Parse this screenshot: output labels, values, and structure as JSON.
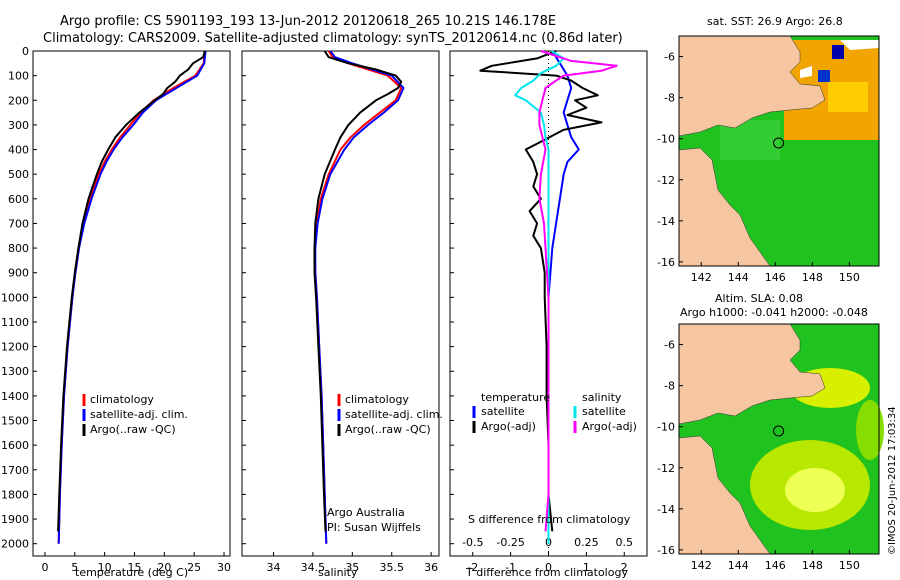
{
  "header": {
    "line1": "Argo profile: CS 5901193_193 13-Jun-2012 20120618_265 10.21S 146.178E",
    "line2": "Climatology: CARS2009. Satellite-adjusted climatology: synTS_20120614.nc (0.86d later)"
  },
  "credit": {
    "org": "Argo Australia",
    "pi": "PI: Susan Wijffels"
  },
  "stamp": "©IMOS 20-Jun-2012 17:03:34",
  "colors": {
    "clim": "#ff0000",
    "sat": "#0000ff",
    "argo": "#000000",
    "sat_s": "#00e5ee",
    "argo_s": "#ff00ff",
    "land": "#f5c6a0",
    "ocean": "#1fc21f"
  },
  "depth_ticks": [
    "0",
    "100",
    "200",
    "300",
    "400",
    "500",
    "600",
    "700",
    "800",
    "900",
    "1000",
    "1100",
    "1200",
    "1300",
    "1400",
    "1500",
    "1600",
    "1700",
    "1800",
    "1900",
    "2000"
  ],
  "legend_profile": [
    {
      "label": "climatology",
      "color": "#ff0000"
    },
    {
      "label": "satellite-adj. clim.",
      "color": "#0000ff"
    },
    {
      "label": "Argo(..raw -QC)",
      "color": "#000000"
    }
  ],
  "legend_diff": {
    "t_title": "temperature",
    "s_title": "salinity",
    "t_items": [
      {
        "label": "satellite",
        "color": "#0000ff"
      },
      {
        "label": "Argo(-adj)",
        "color": "#000000"
      }
    ],
    "s_items": [
      {
        "label": "satellite",
        "color": "#00e5ee"
      },
      {
        "label": "Argo(-adj)",
        "color": "#ff00ff"
      }
    ]
  },
  "maps": {
    "top_title": "sat. SST: 26.9 Argo: 26.8",
    "bottom_title1": "Altim. SLA: 0.08",
    "bottom_title2": "Argo h1000: -0.041 h2000: -0.048",
    "lat_ticks": [
      "-6",
      "-8",
      "-10",
      "-12",
      "-14",
      "-16"
    ],
    "lon_ticks": [
      "142",
      "144",
      "146",
      "148",
      "150"
    ],
    "argo_lon": 146.178,
    "argo_lat": -10.21
  },
  "chart_data": [
    {
      "type": "line",
      "xlabel": "temperature (deg C)",
      "ylabel": "",
      "xlim": [
        -2,
        31
      ],
      "ylim": [
        2050,
        0
      ],
      "xticks": [
        "0",
        "5",
        "10",
        "15",
        "20",
        "25",
        "30"
      ],
      "xtick_vals": [
        0,
        5,
        10,
        15,
        20,
        25,
        30
      ],
      "series": [
        {
          "name": "climatology",
          "color": "#ff0000",
          "depth": [
            0,
            50,
            100,
            150,
            200,
            250,
            300,
            350,
            400,
            450,
            500,
            600,
            700,
            800,
            900,
            1000,
            1200,
            1400,
            1600,
            1800,
            2000
          ],
          "values": [
            26.8,
            26.6,
            25.2,
            21.5,
            18.2,
            16.0,
            14.3,
            12.6,
            11.2,
            10.0,
            9.0,
            7.6,
            6.5,
            5.7,
            5.1,
            4.6,
            3.8,
            3.2,
            2.8,
            2.5,
            2.3
          ]
        },
        {
          "name": "satellite-adj. clim.",
          "color": "#0000ff",
          "depth": [
            0,
            50,
            100,
            150,
            200,
            250,
            300,
            350,
            400,
            450,
            500,
            600,
            700,
            800,
            900,
            1000,
            1200,
            1400,
            1600,
            1800,
            2000
          ],
          "values": [
            26.9,
            26.7,
            25.5,
            22.0,
            18.6,
            16.4,
            14.8,
            13.0,
            11.5,
            10.3,
            9.3,
            7.8,
            6.6,
            5.7,
            5.1,
            4.6,
            3.8,
            3.2,
            2.8,
            2.5,
            2.3
          ]
        },
        {
          "name": "Argo(..raw -QC)",
          "color": "#000000",
          "depth": [
            0,
            25,
            50,
            75,
            100,
            125,
            150,
            175,
            200,
            250,
            300,
            350,
            400,
            450,
            500,
            600,
            700,
            800,
            900,
            1000,
            1200,
            1400,
            1600,
            1800,
            1950
          ],
          "values": [
            26.8,
            26.5,
            24.8,
            24.0,
            22.6,
            21.8,
            20.5,
            19.8,
            18.4,
            15.8,
            13.6,
            11.8,
            10.6,
            9.5,
            8.7,
            7.3,
            6.3,
            5.6,
            5.0,
            4.5,
            3.7,
            3.1,
            2.7,
            2.4,
            2.2
          ]
        }
      ]
    },
    {
      "type": "line",
      "xlabel": "salinity",
      "ylabel": "",
      "xlim": [
        33.6,
        36.1
      ],
      "ylim": [
        2050,
        0
      ],
      "xticks": [
        "34",
        "34.5",
        "35",
        "35.5",
        "36"
      ],
      "xtick_vals": [
        34,
        34.5,
        35,
        35.5,
        36
      ],
      "series": [
        {
          "name": "climatology",
          "color": "#ff0000",
          "depth": [
            0,
            25,
            50,
            100,
            150,
            200,
            250,
            300,
            350,
            400,
            500,
            600,
            700,
            800,
            900,
            1000,
            1200,
            1400,
            1600,
            1800,
            2000
          ],
          "values": [
            34.7,
            34.75,
            34.95,
            35.45,
            35.62,
            35.55,
            35.35,
            35.15,
            34.98,
            34.85,
            34.7,
            34.6,
            34.55,
            34.52,
            34.53,
            34.55,
            34.58,
            34.61,
            34.63,
            34.65,
            34.67
          ]
        },
        {
          "name": "satellite-adj. clim.",
          "color": "#0000ff",
          "depth": [
            0,
            25,
            50,
            100,
            150,
            200,
            250,
            300,
            350,
            400,
            500,
            600,
            700,
            800,
            900,
            1000,
            1200,
            1400,
            1600,
            1800,
            2000
          ],
          "values": [
            34.72,
            34.78,
            35.0,
            35.5,
            35.65,
            35.58,
            35.4,
            35.2,
            35.02,
            34.9,
            34.72,
            34.62,
            34.56,
            34.53,
            34.53,
            34.55,
            34.58,
            34.61,
            34.63,
            34.65,
            34.67
          ]
        },
        {
          "name": "Argo(..raw -QC)",
          "color": "#000000",
          "depth": [
            0,
            25,
            50,
            75,
            100,
            125,
            150,
            175,
            200,
            250,
            300,
            350,
            400,
            500,
            600,
            700,
            800,
            900,
            1000,
            1200,
            1400,
            1600,
            1800,
            1950
          ],
          "values": [
            34.65,
            34.7,
            34.95,
            35.3,
            35.55,
            35.62,
            35.58,
            35.45,
            35.3,
            35.1,
            34.95,
            34.85,
            34.78,
            34.65,
            34.57,
            34.53,
            34.52,
            34.52,
            34.54,
            34.57,
            34.6,
            34.62,
            34.64,
            34.66
          ]
        }
      ]
    },
    {
      "type": "line",
      "xlabel": "T difference from climatology",
      "xlabel_top": "S difference from climatology",
      "ylabel": "",
      "xlim": [
        -2.6,
        2.6
      ],
      "ylim": [
        2050,
        0
      ],
      "xticks": [
        "-2",
        "-1",
        "0",
        "1",
        "2"
      ],
      "xtick_vals": [
        -2,
        -1,
        0,
        1,
        2
      ],
      "xticks_top": [
        "-0.5",
        "-0.25",
        "0",
        "0.25",
        "0.5"
      ],
      "xtick_top_vals": [
        -0.5,
        -0.25,
        0,
        0.25,
        0.5
      ],
      "s_scale": 4,
      "series": [
        {
          "name": "T satellite",
          "color": "#0000ff",
          "kind": "T",
          "depth": [
            0,
            50,
            100,
            150,
            200,
            250,
            300,
            350,
            400,
            450,
            500,
            600,
            700,
            800,
            900,
            1000,
            1200,
            1400,
            1600,
            1800,
            2000
          ],
          "values": [
            0.1,
            0.3,
            0.5,
            0.6,
            0.5,
            0.4,
            0.5,
            0.6,
            0.8,
            0.5,
            0.4,
            0.3,
            0.2,
            0.1,
            0.05,
            0.0,
            0.0,
            0.0,
            0.0,
            0.0,
            0.0
          ]
        },
        {
          "name": "T Argo(-adj)",
          "color": "#000000",
          "kind": "T",
          "depth": [
            0,
            30,
            60,
            80,
            100,
            120,
            150,
            180,
            200,
            230,
            260,
            290,
            320,
            360,
            400,
            450,
            500,
            550,
            600,
            650,
            700,
            750,
            800,
            900,
            1000,
            1200,
            1400,
            1600,
            1800,
            1950
          ],
          "values": [
            0.2,
            -0.3,
            -1.5,
            -1.8,
            0.2,
            0.6,
            0.9,
            1.3,
            0.7,
            1.0,
            0.5,
            1.4,
            0.4,
            -0.1,
            -0.6,
            -0.4,
            -0.3,
            -0.4,
            -0.2,
            -0.5,
            -0.3,
            -0.4,
            -0.2,
            -0.1,
            -0.1,
            -0.05,
            -0.05,
            0.0,
            0.0,
            0.1
          ]
        },
        {
          "name": "S satellite",
          "color": "#00e5ee",
          "kind": "S",
          "depth": [
            0,
            30,
            60,
            90,
            120,
            150,
            180,
            200,
            250,
            300,
            350,
            400,
            500,
            600,
            700,
            800,
            900,
            1000,
            1200,
            1400,
            1600,
            1800,
            2000
          ],
          "values": [
            0.02,
            0.1,
            0.05,
            -0.05,
            -0.1,
            -0.18,
            -0.22,
            -0.15,
            -0.05,
            -0.03,
            -0.02,
            0.0,
            0.0,
            0.0,
            0.0,
            0.0,
            0.0,
            0.0,
            0.0,
            0.0,
            0.0,
            0.0,
            0.0
          ]
        },
        {
          "name": "S Argo(-adj)",
          "color": "#ff00ff",
          "kind": "S",
          "depth": [
            0,
            40,
            60,
            80,
            100,
            120,
            150,
            200,
            250,
            300,
            400,
            500,
            600,
            700,
            800,
            900,
            1000,
            1200,
            1400,
            1600,
            1800,
            1950
          ],
          "values": [
            -0.05,
            0.15,
            0.45,
            0.35,
            0.1,
            0.05,
            -0.02,
            -0.04,
            -0.06,
            -0.06,
            -0.02,
            -0.05,
            -0.06,
            -0.03,
            -0.02,
            -0.01,
            0.0,
            0.0,
            0.0,
            0.0,
            0.0,
            -0.02
          ]
        }
      ]
    }
  ]
}
